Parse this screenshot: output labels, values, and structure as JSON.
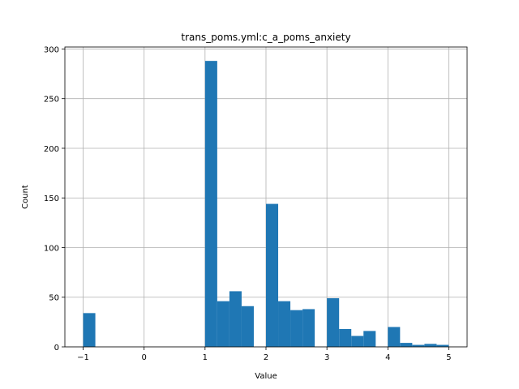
{
  "chart_data": {
    "type": "bar",
    "title": "trans_poms.yml:c_a_poms_anxiety",
    "xlabel": "Value",
    "ylabel": "Count",
    "xlim": [
      -1.3,
      5.3
    ],
    "ylim": [
      0,
      302
    ],
    "grid": true,
    "bar_color": "#1f77b4",
    "bin_width": 0.2,
    "bins": [
      {
        "x0": -1.0,
        "x1": -0.8,
        "count": 34
      },
      {
        "x0": 1.0,
        "x1": 1.2,
        "count": 288
      },
      {
        "x0": 1.2,
        "x1": 1.4,
        "count": 46
      },
      {
        "x0": 1.4,
        "x1": 1.6,
        "count": 56
      },
      {
        "x0": 1.6,
        "x1": 1.8,
        "count": 41
      },
      {
        "x0": 2.0,
        "x1": 2.2,
        "count": 144
      },
      {
        "x0": 2.2,
        "x1": 2.4,
        "count": 46
      },
      {
        "x0": 2.4,
        "x1": 2.6,
        "count": 37
      },
      {
        "x0": 2.6,
        "x1": 2.8,
        "count": 38
      },
      {
        "x0": 3.0,
        "x1": 3.2,
        "count": 49
      },
      {
        "x0": 3.2,
        "x1": 3.4,
        "count": 18
      },
      {
        "x0": 3.4,
        "x1": 3.6,
        "count": 11
      },
      {
        "x0": 3.6,
        "x1": 3.8,
        "count": 16
      },
      {
        "x0": 4.0,
        "x1": 4.2,
        "count": 20
      },
      {
        "x0": 4.2,
        "x1": 4.4,
        "count": 4
      },
      {
        "x0": 4.4,
        "x1": 4.6,
        "count": 2
      },
      {
        "x0": 4.6,
        "x1": 4.8,
        "count": 3
      },
      {
        "x0": 4.8,
        "x1": 5.0,
        "count": 2
      }
    ],
    "x_ticks": [
      {
        "value": -1,
        "label": "−1"
      },
      {
        "value": 0,
        "label": "0"
      },
      {
        "value": 1,
        "label": "1"
      },
      {
        "value": 2,
        "label": "2"
      },
      {
        "value": 3,
        "label": "3"
      },
      {
        "value": 4,
        "label": "4"
      },
      {
        "value": 5,
        "label": "5"
      }
    ],
    "y_ticks": [
      {
        "value": 0,
        "label": "0"
      },
      {
        "value": 50,
        "label": "50"
      },
      {
        "value": 100,
        "label": "100"
      },
      {
        "value": 150,
        "label": "150"
      },
      {
        "value": 200,
        "label": "200"
      },
      {
        "value": 250,
        "label": "250"
      },
      {
        "value": 300,
        "label": "300"
      }
    ]
  }
}
